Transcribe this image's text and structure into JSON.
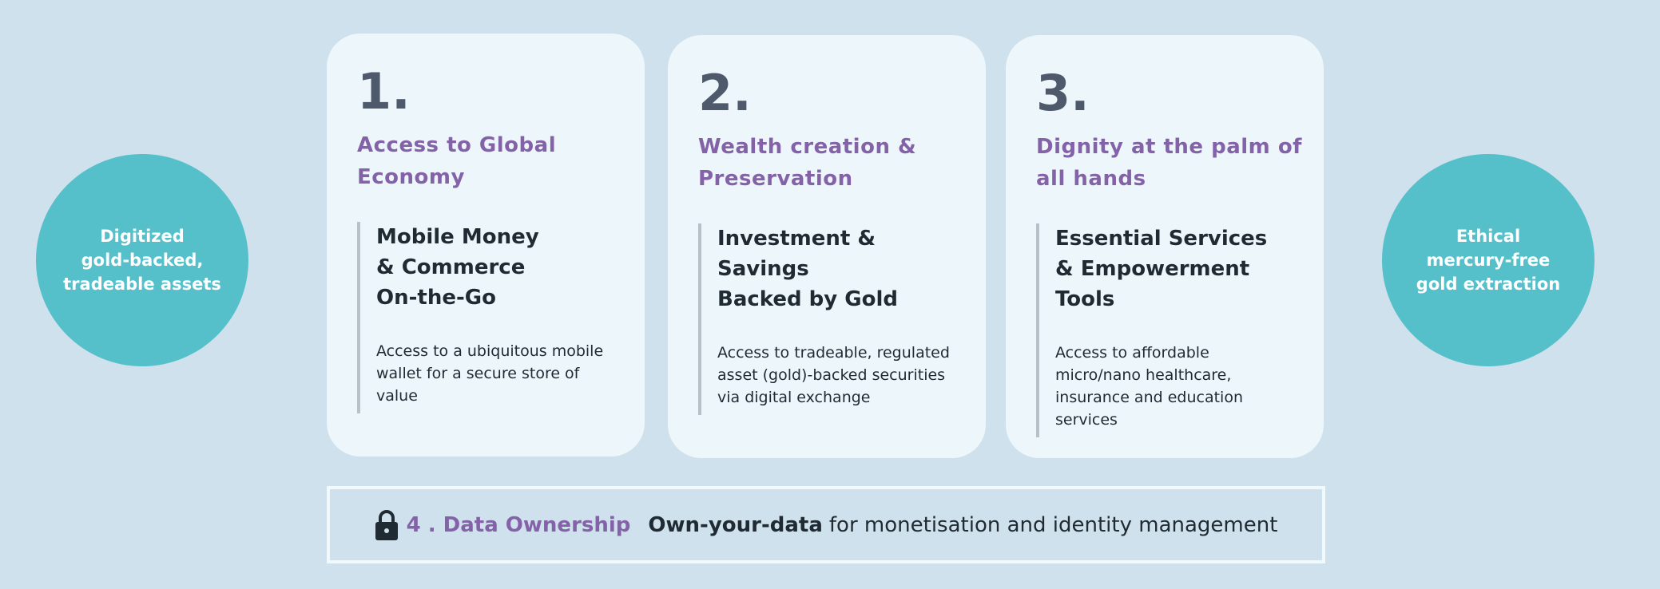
{
  "left_circle": {
    "text": "Digitized\ngold-backed,\ntradeable assets"
  },
  "right_circle": {
    "text": "Ethical\nmercury-free\ngold extraction"
  },
  "cards": [
    {
      "number": "1.",
      "heading": "Access to Global Economy",
      "subheading": "Mobile Money\n& Commerce\nOn-the-Go",
      "body": "Access to a ubiquitous mobile wallet for a secure store of value"
    },
    {
      "number": "2.",
      "heading": "Wealth creation & Preservation",
      "subheading": "Investment & Savings\nBacked by Gold",
      "body": "Access to tradeable, regulated asset (gold)-backed securities via digital exchange"
    },
    {
      "number": "3.",
      "heading": "Dignity at the palm of all hands",
      "subheading": "Essential Services\n& Empowerment Tools",
      "body": "Access to affordable micro/nano healthcare, insurance and education services"
    }
  ],
  "data_ownership": {
    "icon": "lock-icon",
    "title": "4 . Data Ownership",
    "emphasis": "Own-your-data",
    "text": "for monetisation and identity management"
  },
  "colors": {
    "background": "#cfe1ec",
    "card": "#ecf6fb",
    "circle": "#55bfca",
    "accent": "#8462a8",
    "text": "#1f2a33"
  }
}
